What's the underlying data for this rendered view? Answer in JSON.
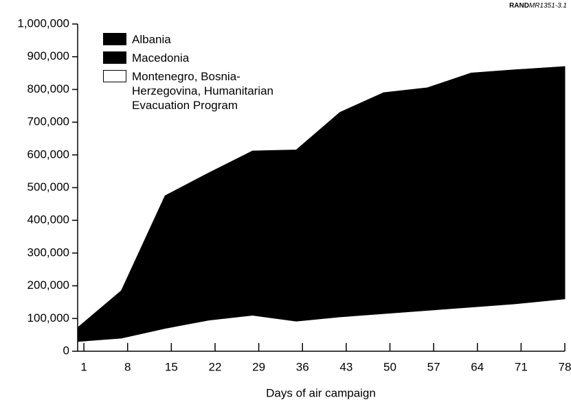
{
  "chart_data": {
    "type": "area",
    "source": "RAND",
    "source_id": "MR1351-3.1",
    "x_label": "Days of air campaign",
    "x": [
      0,
      7,
      14,
      21,
      28,
      35,
      42,
      49,
      56,
      63,
      70,
      78
    ],
    "series": [
      {
        "name": "Montenegro, Bosnia-Herzegovina, Humanitarian Evacuation Program",
        "color": "#ffffff",
        "values": [
          30000,
          40000,
          70000,
          95000,
          110000,
          92000,
          105000,
          115000,
          125000,
          135000,
          145000,
          160000
        ]
      },
      {
        "name": "Macedonia",
        "color": "#000000",
        "values": [
          17000,
          50000,
          120000,
          150000,
          170000,
          190000,
          215000,
          230000,
          235000,
          245000,
          250000,
          255000
        ]
      },
      {
        "name": "Albania",
        "color": "#000000",
        "values": [
          25000,
          95000,
          285000,
          300000,
          332000,
          333000,
          410000,
          445000,
          445000,
          470000,
          465000,
          455000
        ]
      }
    ],
    "xlim": [
      0,
      78
    ],
    "xticks": [
      1,
      8,
      15,
      22,
      29,
      36,
      43,
      50,
      57,
      64,
      71,
      78
    ],
    "ylim": [
      0,
      1000000
    ],
    "yticks": [
      0,
      {
        "value": 100000,
        "label": "100,000"
      },
      {
        "value": 200000,
        "label": "200,000"
      },
      {
        "value": 300000,
        "label": "300,000"
      },
      {
        "value": 400000,
        "label": "400,000"
      },
      {
        "value": 500000,
        "label": "500,000"
      },
      {
        "value": 600000,
        "label": "600,000"
      },
      {
        "value": 700000,
        "label": "700,000"
      },
      {
        "value": 800000,
        "label": "800,000"
      },
      {
        "value": 900000,
        "label": "900,000"
      },
      {
        "value": 1000000,
        "label": "1,000,000"
      }
    ],
    "stacked": true
  }
}
